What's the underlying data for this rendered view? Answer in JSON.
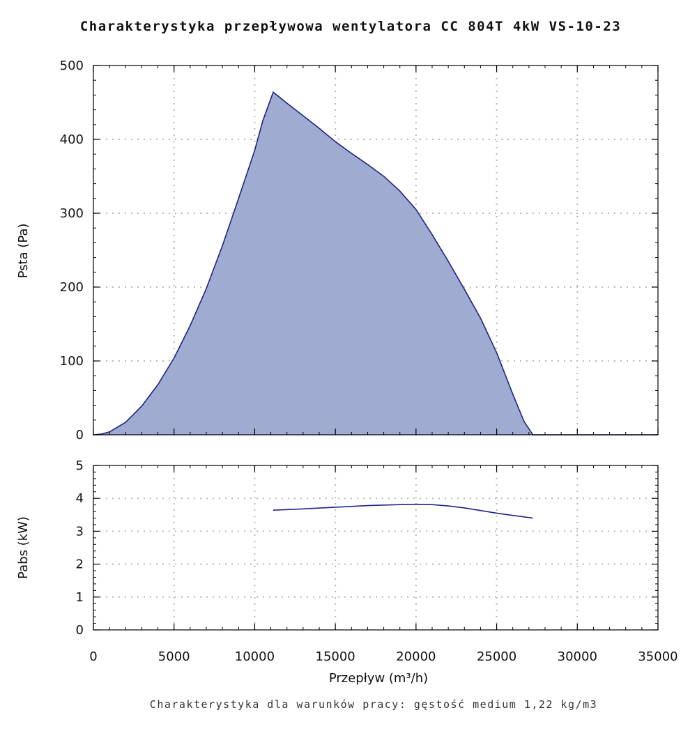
{
  "chart_data": [
    {
      "type": "area",
      "title": "Charakterystyka przepływowa wentylatora CC 804T 4kW VS-10-23",
      "xlabel": "",
      "ylabel": "Psta (Pa)",
      "xlim": [
        0,
        35000
      ],
      "ylim": [
        0,
        500
      ],
      "xticks": [
        "0",
        "5000",
        "10000",
        "15000",
        "20000",
        "25000",
        "30000",
        "35000"
      ],
      "yticks": [
        "0",
        "100",
        "200",
        "300",
        "400",
        "500"
      ],
      "grid": true,
      "fill_color": "#9fabd0",
      "line_color": "#1c2484",
      "series": [
        {
          "x": [
            0,
            500,
            1000,
            2000,
            3000,
            4000,
            5000,
            6000,
            7000,
            8000,
            9000,
            10000,
            10500,
            11150,
            12000,
            13000,
            14000,
            15000,
            16000,
            17000,
            18000,
            19000,
            20000,
            21000,
            22000,
            23000,
            24000,
            25000,
            26000,
            26700,
            27250,
            35000
          ],
          "y": [
            0,
            1,
            4,
            17,
            39,
            68,
            104,
            148,
            198,
            256,
            320,
            385,
            425,
            464,
            449,
            432,
            415,
            397,
            381,
            366,
            350,
            330,
            305,
            271,
            235,
            197,
            158,
            111,
            55,
            18,
            0,
            0
          ]
        }
      ]
    },
    {
      "type": "line",
      "xlabel": "Przepływ (m³/h)",
      "ylabel": "Pabs (kW)",
      "xlim": [
        0,
        35000
      ],
      "ylim": [
        0,
        5
      ],
      "xticks": [
        "0",
        "5000",
        "10000",
        "15000",
        "20000",
        "25000",
        "30000",
        "35000"
      ],
      "yticks": [
        "0",
        "1",
        "2",
        "3",
        "4",
        "5"
      ],
      "grid": true,
      "line_color": "#1c2484",
      "series": [
        {
          "x": [
            11150,
            13000,
            15000,
            17000,
            19000,
            20000,
            21000,
            22000,
            23000,
            24000,
            25000,
            26000,
            27250
          ],
          "y": [
            3.64,
            3.68,
            3.73,
            3.78,
            3.81,
            3.82,
            3.81,
            3.77,
            3.71,
            3.63,
            3.55,
            3.48,
            3.4
          ]
        }
      ]
    }
  ],
  "footnote": "Charakterystyka dla warunków pracy: gęstość medium 1,22 kg/m3"
}
